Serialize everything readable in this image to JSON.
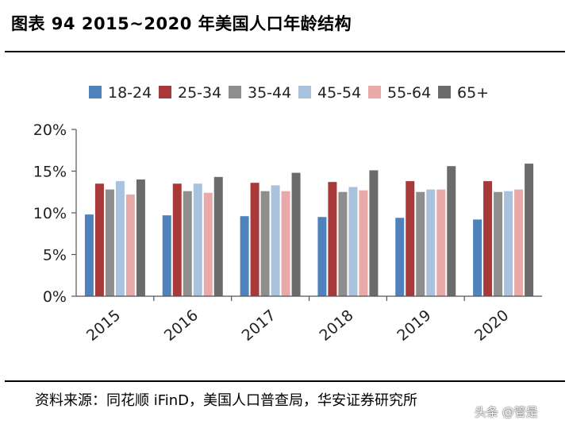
{
  "header": {
    "title": "图表 94 2015~2020 年美国人口年龄结构"
  },
  "footer": {
    "source": "资料来源：同花顺 iFinD，美国人口普查局，华安证券研究所",
    "watermark": "头条 @管是"
  },
  "chart_data": {
    "type": "bar",
    "categories": [
      "2015",
      "2016",
      "2017",
      "2018",
      "2019",
      "2020"
    ],
    "series": [
      {
        "name": "18-24",
        "color": "#4f81bd",
        "values": [
          9.8,
          9.7,
          9.6,
          9.5,
          9.4,
          9.2
        ]
      },
      {
        "name": "25-34",
        "color": "#a8393a",
        "values": [
          13.5,
          13.5,
          13.6,
          13.7,
          13.8,
          13.8
        ]
      },
      {
        "name": "35-44",
        "color": "#8e8e8e",
        "values": [
          12.8,
          12.6,
          12.6,
          12.5,
          12.5,
          12.5
        ]
      },
      {
        "name": "45-54",
        "color": "#a9c3df",
        "values": [
          13.8,
          13.5,
          13.3,
          13.1,
          12.8,
          12.6
        ]
      },
      {
        "name": "55-64",
        "color": "#e8a9a8",
        "values": [
          12.2,
          12.4,
          12.6,
          12.7,
          12.8,
          12.8
        ]
      },
      {
        "name": "65+",
        "color": "#6b6b6b",
        "values": [
          14.0,
          14.3,
          14.8,
          15.1,
          15.6,
          15.9
        ]
      }
    ],
    "ylim": [
      0,
      20
    ],
    "yticks": [
      "0%",
      "5%",
      "10%",
      "15%",
      "20%"
    ],
    "ytick_values": [
      0,
      5,
      10,
      15,
      20
    ],
    "legend_position": "top",
    "grid": false
  }
}
